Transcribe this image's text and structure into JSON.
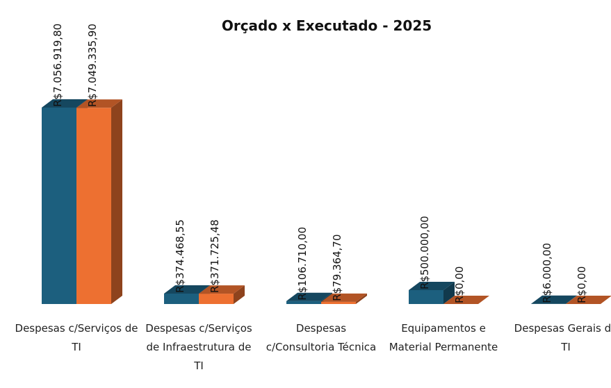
{
  "chart_data": {
    "type": "bar3d",
    "title": "Orçado x Executado - 2025",
    "categories": [
      "Despesas c/Serviços de TI",
      "Despesas c/Serviços de Infraestrutura de TI",
      "Despesas c/Consultoria Técnica",
      "Equipamentos e Material Permanente",
      "Despesas Gerais de TI"
    ],
    "series": [
      {
        "color": "#1c5f7e",
        "values": [
          7056919.8,
          374468.55,
          106710,
          500000,
          6000
        ],
        "value_labels": [
          "R$7.056.919,80",
          "R$374.468,55",
          "R$106.710,00",
          "R$500.000,00",
          "R$6.000,00"
        ]
      },
      {
        "color": "#ed7031",
        "values": [
          7049335.9,
          371725.48,
          79364.7,
          0,
          0
        ],
        "value_labels": [
          "R$7.049.335,90",
          "R$371.725,48",
          "R$79.364,70",
          "R$0,00",
          "R$0,00"
        ]
      }
    ]
  }
}
